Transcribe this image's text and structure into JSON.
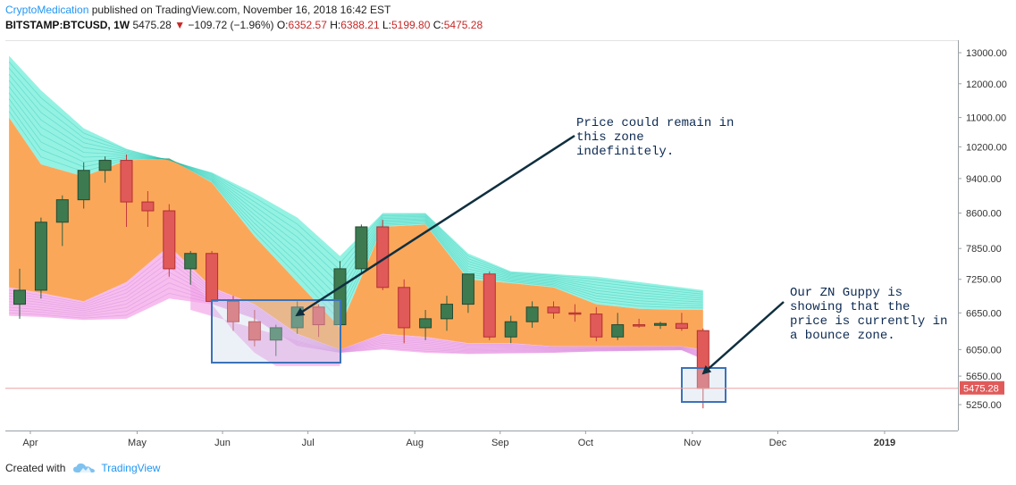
{
  "header": {
    "author": "CryptoMedication",
    "published": " published on TradingView.com, November 16, 2018 16:42 EST",
    "symbol": "BITSTAMP:BTCUSD, 1W",
    "last": "5475.28",
    "change": "−109.72 (−1.96%)",
    "o_label": "O:",
    "o": "6352.57",
    "h_label": "H:",
    "h": "6388.21",
    "l_label": "L:",
    "l": "5199.80",
    "c_label": "C:",
    "c": "5475.28"
  },
  "footer": {
    "created_with": "Created with",
    "brand": "TradingView"
  },
  "colors": {
    "up": "#3d7a50",
    "down": "#e05a5a",
    "orange": "#fba75a",
    "teal": "#3de8cc",
    "pink": "#f4a7e8",
    "box": "#3b72b8",
    "arrow": "#0f2f3f"
  },
  "chart_data": {
    "type": "candlestick",
    "title": "BITSTAMP:BTCUSD, 1W",
    "price_scale": "log",
    "price_ticks": [
      13000,
      12000,
      11000,
      10200,
      9400,
      8600,
      7850,
      7250,
      6650,
      6050,
      5650,
      5250
    ],
    "last_price_label": "5475.28",
    "time_labels": [
      {
        "label": "Apr",
        "week": 0.5
      },
      {
        "label": "May",
        "week": 5.5
      },
      {
        "label": "Jun",
        "week": 9.5
      },
      {
        "label": "Jul",
        "week": 13.5
      },
      {
        "label": "Aug",
        "week": 18.5
      },
      {
        "label": "Sep",
        "week": 22.5
      },
      {
        "label": "Oct",
        "week": 26.5
      },
      {
        "label": "Nov",
        "week": 31.5
      },
      {
        "label": "Dec",
        "week": 35.5
      },
      {
        "label": "2019",
        "week": 40.5
      }
    ],
    "candles": [
      {
        "o": 6800,
        "h": 7450,
        "l": 6550,
        "c": 7050
      },
      {
        "o": 7050,
        "h": 8500,
        "l": 6900,
        "c": 8400
      },
      {
        "o": 8400,
        "h": 9000,
        "l": 7900,
        "c": 8900
      },
      {
        "o": 8900,
        "h": 9800,
        "l": 8700,
        "c": 9600
      },
      {
        "o": 9600,
        "h": 9950,
        "l": 9300,
        "c": 9850
      },
      {
        "o": 9850,
        "h": 10000,
        "l": 8300,
        "c": 8850
      },
      {
        "o": 8850,
        "h": 9100,
        "l": 8300,
        "c": 8650
      },
      {
        "o": 8650,
        "h": 8800,
        "l": 7300,
        "c": 7450
      },
      {
        "o": 7450,
        "h": 7800,
        "l": 7150,
        "c": 7750
      },
      {
        "o": 7750,
        "h": 7800,
        "l": 6500,
        "c": 6850
      },
      {
        "o": 6850,
        "h": 6950,
        "l": 6350,
        "c": 6500
      },
      {
        "o": 6500,
        "h": 6700,
        "l": 6100,
        "c": 6200
      },
      {
        "o": 6200,
        "h": 6450,
        "l": 5950,
        "c": 6400
      },
      {
        "o": 6400,
        "h": 6850,
        "l": 6300,
        "c": 6750
      },
      {
        "o": 6750,
        "h": 6800,
        "l": 6250,
        "c": 6450
      },
      {
        "o": 6450,
        "h": 7600,
        "l": 6400,
        "c": 7450
      },
      {
        "o": 7450,
        "h": 8350,
        "l": 7350,
        "c": 8300
      },
      {
        "o": 8300,
        "h": 8450,
        "l": 7050,
        "c": 7100
      },
      {
        "o": 7100,
        "h": 7250,
        "l": 6150,
        "c": 6400
      },
      {
        "o": 6400,
        "h": 6700,
        "l": 6200,
        "c": 6550
      },
      {
        "o": 6550,
        "h": 6950,
        "l": 6350,
        "c": 6800
      },
      {
        "o": 6800,
        "h": 7350,
        "l": 6650,
        "c": 7350
      },
      {
        "o": 7350,
        "h": 7400,
        "l": 6200,
        "c": 6250
      },
      {
        "o": 6250,
        "h": 6600,
        "l": 6150,
        "c": 6500
      },
      {
        "o": 6500,
        "h": 6850,
        "l": 6400,
        "c": 6750
      },
      {
        "o": 6750,
        "h": 6850,
        "l": 6550,
        "c": 6650
      },
      {
        "o": 6650,
        "h": 6800,
        "l": 6500,
        "c": 6630
      },
      {
        "o": 6630,
        "h": 6750,
        "l": 6180,
        "c": 6250
      },
      {
        "o": 6250,
        "h": 6650,
        "l": 6200,
        "c": 6450
      },
      {
        "o": 6450,
        "h": 6550,
        "l": 6400,
        "c": 6440
      },
      {
        "o": 6440,
        "h": 6500,
        "l": 6380,
        "c": 6470
      },
      {
        "o": 6470,
        "h": 6650,
        "l": 6350,
        "c": 6390
      },
      {
        "o": 6352.57,
        "h": 6388.21,
        "l": 5199.8,
        "c": 5475.28
      }
    ],
    "guppy_bands": {
      "weeks": [
        -0.5,
        1,
        3,
        5,
        7,
        9,
        11,
        13,
        15,
        17,
        19,
        21,
        23,
        25,
        27,
        29,
        31,
        32
      ],
      "slow_top": [
        12900,
        11800,
        10700,
        10150,
        9850,
        9550,
        9050,
        8500,
        7700,
        8600,
        8600,
        7750,
        7400,
        7350,
        7300,
        7200,
        7100,
        7050
      ],
      "orange_top": [
        11000,
        9750,
        9450,
        9850,
        9900,
        9300,
        8100,
        7200,
        6400,
        8300,
        8350,
        7250,
        7180,
        7100,
        6800,
        6720,
        6700,
        6700
      ],
      "fast_top": [
        7100,
        7000,
        6850,
        7200,
        7900,
        7100,
        6800,
        6300,
        6050,
        6300,
        6250,
        6150,
        6150,
        6100,
        6100,
        6100,
        6100,
        6050
      ],
      "fast_bottom": [
        6600,
        6580,
        6530,
        6550,
        6900,
        6800,
        6550,
        6100,
        6000,
        6050,
        6000,
        5980,
        5990,
        6000,
        6020,
        6030,
        6040,
        5900
      ],
      "pink_spike_weeks": [
        8,
        9,
        10,
        11,
        12,
        13,
        14,
        15
      ],
      "pink_spike_vals": [
        7250,
        6800,
        6350,
        6000,
        5800,
        5800,
        5800,
        5800
      ]
    },
    "annotations": [
      {
        "text": [
          "Price could remain in",
          "this zone",
          "indefinitely."
        ]
      },
      {
        "text": [
          "Our ZN Guppy is",
          "showing that the",
          "price is currently in",
          "a bounce zone."
        ]
      }
    ]
  }
}
